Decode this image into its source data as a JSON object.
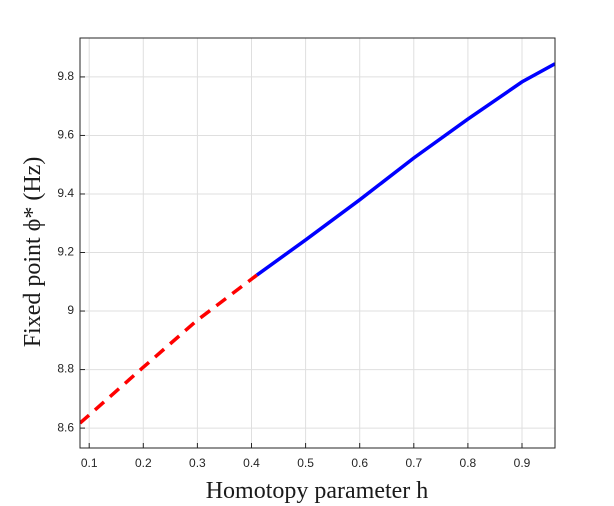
{
  "chart_data": {
    "type": "line",
    "xlabel": "Homotopy parameter h",
    "ylabel": "Fixed point ϕ* (Hz)",
    "x": [
      0.083,
      0.2,
      0.3,
      0.41,
      0.5,
      0.6,
      0.7,
      0.8,
      0.9,
      0.961
    ],
    "series": [
      {
        "color": "#ff0000",
        "style": "dashed",
        "values": [
          8.617,
          8.808,
          8.969,
          9.123,
          null,
          null,
          null,
          null,
          null,
          null
        ]
      },
      {
        "color": "#0000ff",
        "style": "solid",
        "values": [
          null,
          null,
          null,
          9.123,
          9.243,
          9.38,
          9.523,
          9.656,
          9.783,
          9.845
        ]
      }
    ],
    "xlim": [
      0.083,
      0.961
    ],
    "xticks": [
      0.1,
      0.2,
      0.3,
      0.4,
      0.5,
      0.6,
      0.7,
      0.8,
      0.9
    ],
    "ylim": [
      8.532,
      9.933
    ],
    "yticks": [
      8.6,
      8.8,
      9,
      9.2,
      9.4,
      9.6,
      9.8
    ],
    "grid": true
  }
}
